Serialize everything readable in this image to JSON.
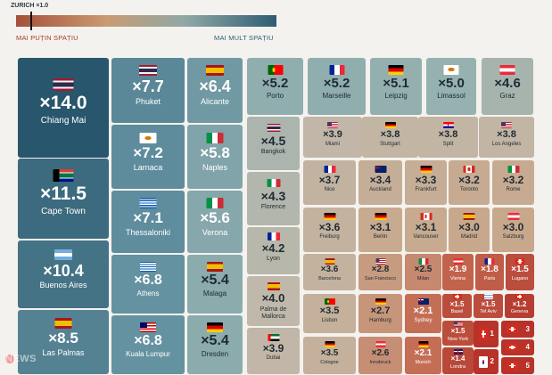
{
  "legend": {
    "top_label": "ZURICH ×1.0",
    "left_label": "MAI PUȚIN SPAȚIU",
    "right_label": "MAI MULT SPAȚIU"
  },
  "watermark": "NEWS",
  "chart_data": {
    "type": "treemap",
    "unit": "living space multiplier vs Zurich",
    "reference": {
      "city": "Zurich",
      "value": 1.0
    },
    "items": [
      {
        "label": "×14.0",
        "city": "Chiang Mai",
        "value": 14.0,
        "flag": "th"
      },
      {
        "label": "×11.5",
        "city": "Cape Town",
        "value": 11.5,
        "flag": "za"
      },
      {
        "label": "×10.4",
        "city": "Buenos Aires",
        "value": 10.4,
        "flag": "ar"
      },
      {
        "label": "×8.5",
        "city": "Las Palmas",
        "value": 8.5,
        "flag": "es"
      },
      {
        "label": "×7.7",
        "city": "Phuket",
        "value": 7.7,
        "flag": "th"
      },
      {
        "label": "×7.2",
        "city": "Larnaca",
        "value": 7.2,
        "flag": "cy"
      },
      {
        "label": "×7.1",
        "city": "Thessaloniki",
        "value": 7.1,
        "flag": "gr"
      },
      {
        "label": "×6.8",
        "city": "Athens",
        "value": 6.8,
        "flag": "gr"
      },
      {
        "label": "×6.8",
        "city": "Kuala Lumpur",
        "value": 6.8,
        "flag": "my"
      },
      {
        "label": "×6.4",
        "city": "Alicante",
        "value": 6.4,
        "flag": "es"
      },
      {
        "label": "×5.8",
        "city": "Naples",
        "value": 5.8,
        "flag": "it"
      },
      {
        "label": "×5.6",
        "city": "Verona",
        "value": 5.6,
        "flag": "it"
      },
      {
        "label": "×5.4",
        "city": "Malaga",
        "value": 5.4,
        "flag": "es"
      },
      {
        "label": "×5.4",
        "city": "Dresden",
        "value": 5.4,
        "flag": "de"
      },
      {
        "label": "×5.2",
        "city": "Porto",
        "value": 5.2,
        "flag": "pt"
      },
      {
        "label": "×5.2",
        "city": "Marseille",
        "value": 5.2,
        "flag": "fr"
      },
      {
        "label": "×5.1",
        "city": "Leipzig",
        "value": 5.1,
        "flag": "de"
      },
      {
        "label": "×5.0",
        "city": "Limassol",
        "value": 5.0,
        "flag": "cy"
      },
      {
        "label": "×4.6",
        "city": "Graz",
        "value": 4.6,
        "flag": "at"
      },
      {
        "label": "×4.5",
        "city": "Bangkok",
        "value": 4.5,
        "flag": "th"
      },
      {
        "label": "×4.3",
        "city": "Florence",
        "value": 4.3,
        "flag": "it"
      },
      {
        "label": "×4.2",
        "city": "Lyon",
        "value": 4.2,
        "flag": "fr"
      },
      {
        "label": "×4.0",
        "city": "Palma de Mallorca",
        "value": 4.0,
        "flag": "es"
      },
      {
        "label": "×3.9",
        "city": "Dubai",
        "value": 3.9,
        "flag": "ae"
      },
      {
        "label": "×3.9",
        "city": "Miami",
        "value": 3.9,
        "flag": "us"
      },
      {
        "label": "×3.8",
        "city": "Stuttgart",
        "value": 3.8,
        "flag": "de"
      },
      {
        "label": "×3.8",
        "city": "Split",
        "value": 3.8,
        "flag": "hr"
      },
      {
        "label": "×3.8",
        "city": "Los Angeles",
        "value": 3.8,
        "flag": "us"
      },
      {
        "label": "×3.7",
        "city": "Nice",
        "value": 3.7,
        "flag": "fr"
      },
      {
        "label": "×3.4",
        "city": "Auckland",
        "value": 3.4,
        "flag": "nz"
      },
      {
        "label": "×3.3",
        "city": "Frankfurt",
        "value": 3.3,
        "flag": "de"
      },
      {
        "label": "×3.2",
        "city": "Toronto",
        "value": 3.2,
        "flag": "ca"
      },
      {
        "label": "×3.2",
        "city": "Rome",
        "value": 3.2,
        "flag": "it"
      },
      {
        "label": "×3.6",
        "city": "Freiburg",
        "value": 3.6,
        "flag": "de"
      },
      {
        "label": "×3.1",
        "city": "Berlin",
        "value": 3.1,
        "flag": "de"
      },
      {
        "label": "×3.1",
        "city": "Vancouver",
        "value": 3.1,
        "flag": "ca"
      },
      {
        "label": "×3.0",
        "city": "Madrid",
        "value": 3.0,
        "flag": "es"
      },
      {
        "label": "×3.0",
        "city": "Salzburg",
        "value": 3.0,
        "flag": "at"
      },
      {
        "label": "×3.6",
        "city": "Barcelona",
        "value": 3.6,
        "flag": "es"
      },
      {
        "label": "×2.8",
        "city": "San Francisco",
        "value": 2.8,
        "flag": "us"
      },
      {
        "label": "×2.5",
        "city": "Milan",
        "value": 2.5,
        "flag": "it"
      },
      {
        "label": "×1.9",
        "city": "Vienna",
        "value": 1.9,
        "flag": "at"
      },
      {
        "label": "×1.8",
        "city": "Paris",
        "value": 1.8,
        "flag": "fr"
      },
      {
        "label": "×1.5",
        "city": "Lugano",
        "value": 1.5,
        "flag": "ch"
      },
      {
        "label": "×3.5",
        "city": "Lisbon",
        "value": 3.5,
        "flag": "pt"
      },
      {
        "label": "×2.7",
        "city": "Hamburg",
        "value": 2.7,
        "flag": "de"
      },
      {
        "label": "×2.1",
        "city": "Sydney",
        "value": 2.1,
        "flag": "au"
      },
      {
        "label": "×1.5",
        "city": "Basel",
        "value": 1.5,
        "flag": "ch"
      },
      {
        "label": "×1.5",
        "city": "Tel Aviv",
        "value": 1.5,
        "flag": "il"
      },
      {
        "label": "×1.2",
        "city": "Geneva",
        "value": 1.2,
        "flag": "ch"
      },
      {
        "label": "×3.5",
        "city": "Cologne",
        "value": 3.5,
        "flag": "de"
      },
      {
        "label": "×2.6",
        "city": "Innsbruck",
        "value": 2.6,
        "flag": "at"
      },
      {
        "label": "×2.1",
        "city": "Munich",
        "value": 2.1,
        "flag": "de"
      },
      {
        "label": "×1.5",
        "city": "New York",
        "value": 1.5,
        "flag": "us"
      },
      {
        "label": "×1.4",
        "city": "Londra",
        "value": 1.4,
        "flag": "gb"
      },
      {
        "label": "1",
        "city": "",
        "value": null,
        "flag": "ch"
      },
      {
        "label": "3",
        "city": "",
        "value": null,
        "flag": "ch"
      },
      {
        "label": "4",
        "city": "",
        "value": null,
        "flag": "ch"
      },
      {
        "label": "2",
        "city": "",
        "value": null,
        "flag": "kr"
      },
      {
        "label": "5",
        "city": "",
        "value": null,
        "flag": "ch"
      }
    ]
  }
}
